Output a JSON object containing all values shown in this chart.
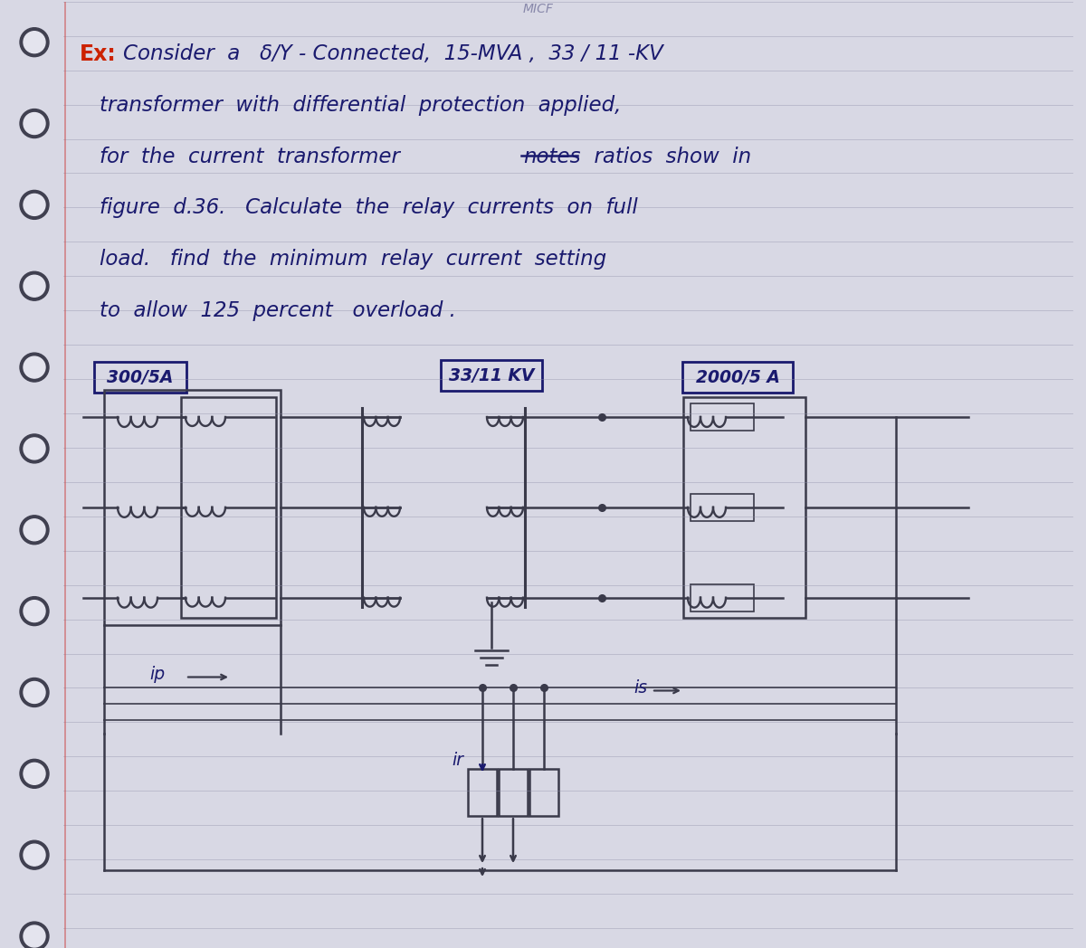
{
  "bg_color": "#e4e4ee",
  "page_bg": "#d8d8e4",
  "text_color": "#1a1a6e",
  "ink_color": "#3a3a4a",
  "red_color": "#cc2200",
  "ruled_line_color": "#9090aa",
  "spiral_color": "#505060",
  "box_300": "300/5A",
  "box_3311": "33/11 KV",
  "box_2000": "2000/5 A",
  "label_ip": "ip",
  "label_ir": "ir",
  "label_is": "is"
}
